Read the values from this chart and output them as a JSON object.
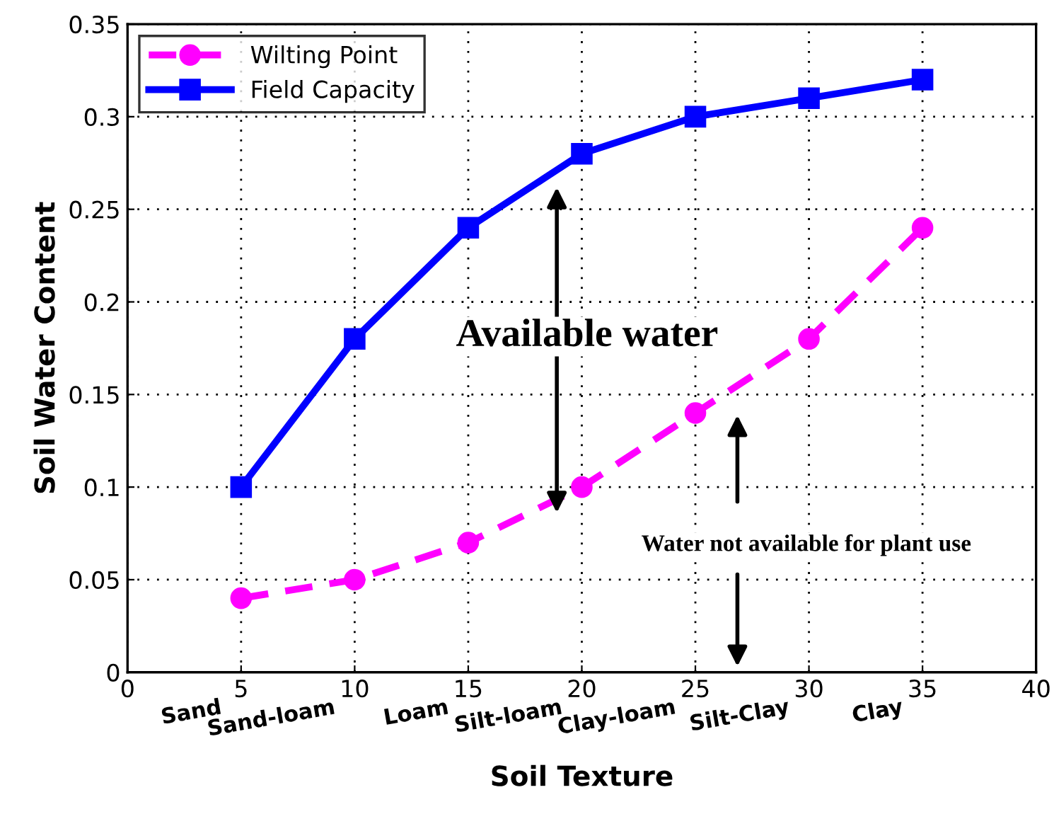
{
  "chart_data": {
    "type": "line",
    "xlabel": "Soil Texture",
    "ylabel": "Soil Water Content",
    "x": [
      5,
      10,
      15,
      20,
      25,
      30,
      35
    ],
    "series": [
      {
        "name": "Wilting Point",
        "color": "#ff00ff",
        "values": [
          0.04,
          0.05,
          0.07,
          0.1,
          0.14,
          0.18,
          0.24
        ],
        "marker": "circle",
        "line_style": "dashed"
      },
      {
        "name": "Field Capacity",
        "color": "#0000ff",
        "values": [
          0.1,
          0.18,
          0.24,
          0.28,
          0.3,
          0.31,
          0.32
        ],
        "marker": "square",
        "line_style": "solid"
      }
    ],
    "xlim": [
      0,
      40
    ],
    "xticks": [
      0,
      5,
      10,
      15,
      20,
      25,
      30,
      35,
      40
    ],
    "ylim": [
      0,
      0.35
    ],
    "yticks": [
      0,
      0.05,
      0.1,
      0.15,
      0.2,
      0.25,
      0.3,
      0.35
    ],
    "grid": true,
    "legend": "top left",
    "annotations": [
      "Available water",
      "Water not available for plant use",
      "Sand",
      "Sand-loam",
      "Loam",
      "Silt-loam",
      "Clay-loam",
      "Silt-Clay",
      "Clay"
    ]
  }
}
